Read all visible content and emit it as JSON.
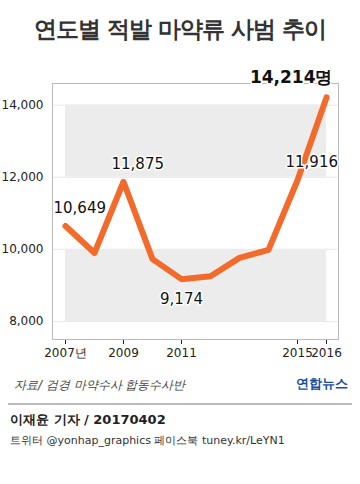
{
  "chart_data": {
    "type": "line",
    "title": "연도별 적발 마약류 사범 추이",
    "categories": [
      "2007년",
      null,
      "2009",
      null,
      "2011",
      null,
      null,
      null,
      "2015",
      "2016"
    ],
    "values": [
      10649,
      9900,
      11875,
      9730,
      9174,
      9255,
      9764,
      9984,
      11916,
      14214
    ],
    "value_labels": [
      "10,649",
      null,
      "11,875",
      null,
      "9,174",
      null,
      null,
      null,
      "11,916",
      "14,214명"
    ],
    "data_labels": true,
    "color": "#f26b2a",
    "ylim": [
      7500,
      14600
    ],
    "yticks": [
      {
        "value": 8000,
        "label": "8,000"
      },
      {
        "value": 10000,
        "label": "10,000"
      },
      {
        "value": 12000,
        "label": "12,000"
      },
      {
        "value": 14000,
        "label": "14,000"
      }
    ],
    "grid": true,
    "source": "자료/ 검경 마약수사 합동수사반",
    "logo": "연합뉴스",
    "byline": "이재윤 기자 / 20170402",
    "footer": "트위터 @yonhap_graphics 페이스북 tuney.kr/LeYN1"
  }
}
